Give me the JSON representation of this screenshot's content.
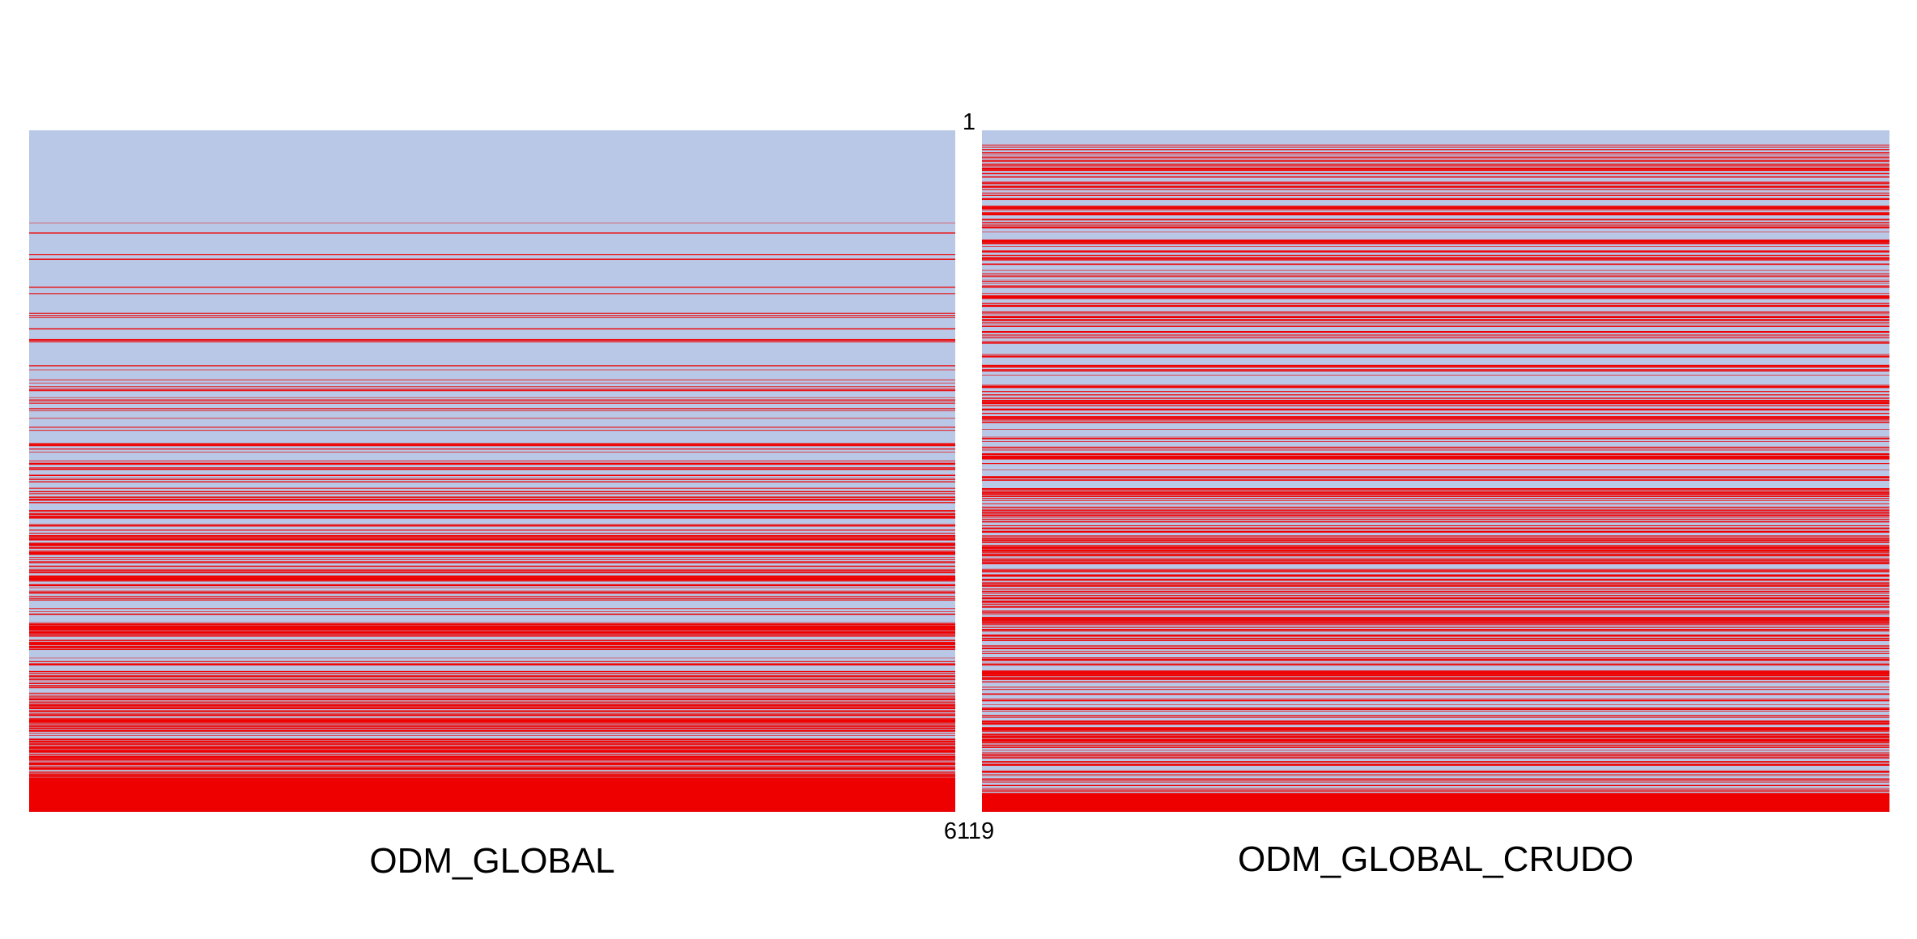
{
  "colors": {
    "background_band": "#b8c8e6",
    "highlight_line": "#ee0000"
  },
  "axis": {
    "top_label": "1",
    "bottom_label": "6119"
  },
  "chart_data": [
    {
      "type": "heatmap",
      "title": "ODM_GLOBAL",
      "row_range": [
        1,
        6119
      ],
      "description_of_pattern": "sparse highlighted rows at top, density increasing toward the bottom; bottom block fully highlighted",
      "density_profile": [
        {
          "from": 1,
          "to": 830,
          "density": 0.0
        },
        {
          "from": 830,
          "to": 1200,
          "density": 0.05
        },
        {
          "from": 1200,
          "to": 2300,
          "density": 0.15
        },
        {
          "from": 2300,
          "to": 3400,
          "density": 0.3
        },
        {
          "from": 3400,
          "to": 4600,
          "density": 0.5
        },
        {
          "from": 4600,
          "to": 5500,
          "density": 0.7
        },
        {
          "from": 5500,
          "to": 5820,
          "density": 0.9
        },
        {
          "from": 5820,
          "to": 6119,
          "density": 1.0
        }
      ],
      "series": []
    },
    {
      "type": "heatmap",
      "title": "ODM_GLOBAL_CRUDO",
      "row_range": [
        1,
        6119
      ],
      "description_of_pattern": "highlighted rows spread throughout from near the top, with dense bands in the lower half; bottom rows fully highlighted",
      "density_profile": [
        {
          "from": 1,
          "to": 120,
          "density": 0.0
        },
        {
          "from": 120,
          "to": 1500,
          "density": 0.45
        },
        {
          "from": 1500,
          "to": 3400,
          "density": 0.35
        },
        {
          "from": 3400,
          "to": 4400,
          "density": 0.65
        },
        {
          "from": 4400,
          "to": 5300,
          "density": 0.5
        },
        {
          "from": 5300,
          "to": 5950,
          "density": 0.7
        },
        {
          "from": 5950,
          "to": 6119,
          "density": 1.0
        }
      ],
      "series": []
    }
  ]
}
